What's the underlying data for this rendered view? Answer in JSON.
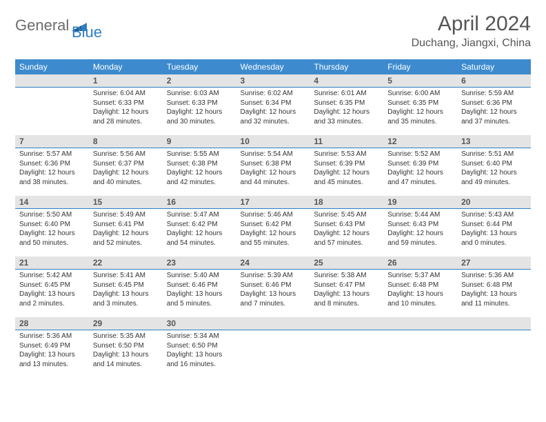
{
  "logo": {
    "part1": "General",
    "part2": "Blue"
  },
  "title": "April 2024",
  "location": "Duchang, Jiangxi, China",
  "colors": {
    "header_bg": "#3d8bce",
    "header_text": "#ffffff",
    "daynum_bg": "#e4e4e4",
    "daynum_border": "#2f7fc2",
    "body_text": "#333333",
    "title_text": "#555555",
    "logo_gray": "#6b6b6b",
    "logo_blue": "#2f7fc2"
  },
  "fonts": {
    "title_size_pt": 22,
    "location_size_pt": 12,
    "dow_size_pt": 9,
    "daynum_size_pt": 9,
    "body_size_pt": 7.5
  },
  "days_of_week": [
    "Sunday",
    "Monday",
    "Tuesday",
    "Wednesday",
    "Thursday",
    "Friday",
    "Saturday"
  ],
  "weeks": [
    [
      null,
      {
        "n": "1",
        "sr": "Sunrise: 6:04 AM",
        "ss": "Sunset: 6:33 PM",
        "d1": "Daylight: 12 hours",
        "d2": "and 28 minutes."
      },
      {
        "n": "2",
        "sr": "Sunrise: 6:03 AM",
        "ss": "Sunset: 6:33 PM",
        "d1": "Daylight: 12 hours",
        "d2": "and 30 minutes."
      },
      {
        "n": "3",
        "sr": "Sunrise: 6:02 AM",
        "ss": "Sunset: 6:34 PM",
        "d1": "Daylight: 12 hours",
        "d2": "and 32 minutes."
      },
      {
        "n": "4",
        "sr": "Sunrise: 6:01 AM",
        "ss": "Sunset: 6:35 PM",
        "d1": "Daylight: 12 hours",
        "d2": "and 33 minutes."
      },
      {
        "n": "5",
        "sr": "Sunrise: 6:00 AM",
        "ss": "Sunset: 6:35 PM",
        "d1": "Daylight: 12 hours",
        "d2": "and 35 minutes."
      },
      {
        "n": "6",
        "sr": "Sunrise: 5:59 AM",
        "ss": "Sunset: 6:36 PM",
        "d1": "Daylight: 12 hours",
        "d2": "and 37 minutes."
      }
    ],
    [
      {
        "n": "7",
        "sr": "Sunrise: 5:57 AM",
        "ss": "Sunset: 6:36 PM",
        "d1": "Daylight: 12 hours",
        "d2": "and 38 minutes."
      },
      {
        "n": "8",
        "sr": "Sunrise: 5:56 AM",
        "ss": "Sunset: 6:37 PM",
        "d1": "Daylight: 12 hours",
        "d2": "and 40 minutes."
      },
      {
        "n": "9",
        "sr": "Sunrise: 5:55 AM",
        "ss": "Sunset: 6:38 PM",
        "d1": "Daylight: 12 hours",
        "d2": "and 42 minutes."
      },
      {
        "n": "10",
        "sr": "Sunrise: 5:54 AM",
        "ss": "Sunset: 6:38 PM",
        "d1": "Daylight: 12 hours",
        "d2": "and 44 minutes."
      },
      {
        "n": "11",
        "sr": "Sunrise: 5:53 AM",
        "ss": "Sunset: 6:39 PM",
        "d1": "Daylight: 12 hours",
        "d2": "and 45 minutes."
      },
      {
        "n": "12",
        "sr": "Sunrise: 5:52 AM",
        "ss": "Sunset: 6:39 PM",
        "d1": "Daylight: 12 hours",
        "d2": "and 47 minutes."
      },
      {
        "n": "13",
        "sr": "Sunrise: 5:51 AM",
        "ss": "Sunset: 6:40 PM",
        "d1": "Daylight: 12 hours",
        "d2": "and 49 minutes."
      }
    ],
    [
      {
        "n": "14",
        "sr": "Sunrise: 5:50 AM",
        "ss": "Sunset: 6:40 PM",
        "d1": "Daylight: 12 hours",
        "d2": "and 50 minutes."
      },
      {
        "n": "15",
        "sr": "Sunrise: 5:49 AM",
        "ss": "Sunset: 6:41 PM",
        "d1": "Daylight: 12 hours",
        "d2": "and 52 minutes."
      },
      {
        "n": "16",
        "sr": "Sunrise: 5:47 AM",
        "ss": "Sunset: 6:42 PM",
        "d1": "Daylight: 12 hours",
        "d2": "and 54 minutes."
      },
      {
        "n": "17",
        "sr": "Sunrise: 5:46 AM",
        "ss": "Sunset: 6:42 PM",
        "d1": "Daylight: 12 hours",
        "d2": "and 55 minutes."
      },
      {
        "n": "18",
        "sr": "Sunrise: 5:45 AM",
        "ss": "Sunset: 6:43 PM",
        "d1": "Daylight: 12 hours",
        "d2": "and 57 minutes."
      },
      {
        "n": "19",
        "sr": "Sunrise: 5:44 AM",
        "ss": "Sunset: 6:43 PM",
        "d1": "Daylight: 12 hours",
        "d2": "and 59 minutes."
      },
      {
        "n": "20",
        "sr": "Sunrise: 5:43 AM",
        "ss": "Sunset: 6:44 PM",
        "d1": "Daylight: 13 hours",
        "d2": "and 0 minutes."
      }
    ],
    [
      {
        "n": "21",
        "sr": "Sunrise: 5:42 AM",
        "ss": "Sunset: 6:45 PM",
        "d1": "Daylight: 13 hours",
        "d2": "and 2 minutes."
      },
      {
        "n": "22",
        "sr": "Sunrise: 5:41 AM",
        "ss": "Sunset: 6:45 PM",
        "d1": "Daylight: 13 hours",
        "d2": "and 3 minutes."
      },
      {
        "n": "23",
        "sr": "Sunrise: 5:40 AM",
        "ss": "Sunset: 6:46 PM",
        "d1": "Daylight: 13 hours",
        "d2": "and 5 minutes."
      },
      {
        "n": "24",
        "sr": "Sunrise: 5:39 AM",
        "ss": "Sunset: 6:46 PM",
        "d1": "Daylight: 13 hours",
        "d2": "and 7 minutes."
      },
      {
        "n": "25",
        "sr": "Sunrise: 5:38 AM",
        "ss": "Sunset: 6:47 PM",
        "d1": "Daylight: 13 hours",
        "d2": "and 8 minutes."
      },
      {
        "n": "26",
        "sr": "Sunrise: 5:37 AM",
        "ss": "Sunset: 6:48 PM",
        "d1": "Daylight: 13 hours",
        "d2": "and 10 minutes."
      },
      {
        "n": "27",
        "sr": "Sunrise: 5:36 AM",
        "ss": "Sunset: 6:48 PM",
        "d1": "Daylight: 13 hours",
        "d2": "and 11 minutes."
      }
    ],
    [
      {
        "n": "28",
        "sr": "Sunrise: 5:36 AM",
        "ss": "Sunset: 6:49 PM",
        "d1": "Daylight: 13 hours",
        "d2": "and 13 minutes."
      },
      {
        "n": "29",
        "sr": "Sunrise: 5:35 AM",
        "ss": "Sunset: 6:50 PM",
        "d1": "Daylight: 13 hours",
        "d2": "and 14 minutes."
      },
      {
        "n": "30",
        "sr": "Sunrise: 5:34 AM",
        "ss": "Sunset: 6:50 PM",
        "d1": "Daylight: 13 hours",
        "d2": "and 16 minutes."
      },
      null,
      null,
      null,
      null
    ]
  ]
}
